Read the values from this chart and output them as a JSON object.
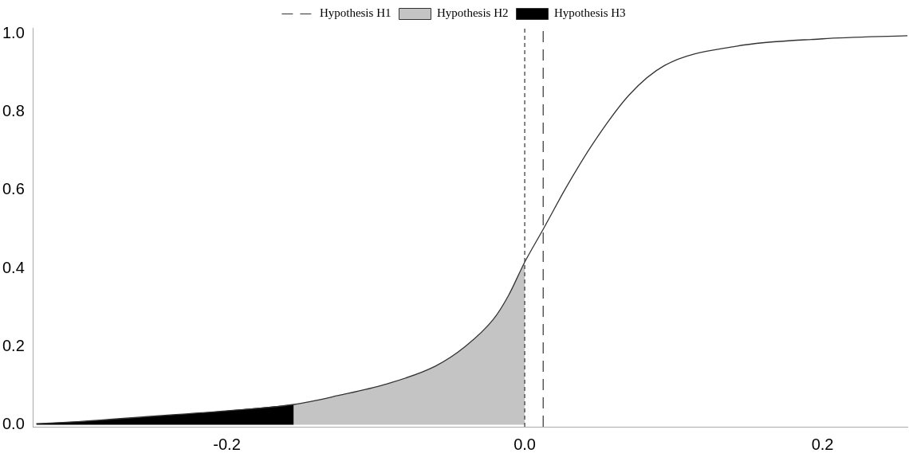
{
  "chart_data": {
    "type": "line",
    "series": [
      {
        "type": "area",
        "name": "Hypothesis H2",
        "color": "#c4c4c4",
        "x": [
          -0.155,
          -0.125,
          -0.094,
          -0.06,
          -0.04,
          -0.021,
          -0.011,
          0
        ],
        "values": [
          0.052,
          0.075,
          0.103,
          0.15,
          0.2,
          0.27,
          0.33,
          0.416
        ]
      },
      {
        "type": "area",
        "name": "Hypothesis H3",
        "color": "#000000",
        "x": [
          -0.328,
          -0.3,
          -0.246,
          -0.203,
          -0.155
        ],
        "values": [
          0.003,
          0.008,
          0.023,
          0.035,
          0.052
        ]
      },
      {
        "color": "#333333",
        "x": [
          -0.328,
          -0.3,
          -0.246,
          -0.203,
          -0.155,
          -0.125,
          -0.094,
          -0.06,
          -0.04,
          -0.021,
          -0.011,
          0,
          0.0124,
          0.028,
          0.046,
          0.07,
          0.094,
          0.142,
          0.2,
          0.257
        ],
        "values": [
          0.003,
          0.008,
          0.023,
          0.035,
          0.052,
          0.075,
          0.103,
          0.15,
          0.2,
          0.27,
          0.33,
          0.416,
          0.5,
          0.608,
          0.72,
          0.843,
          0.919,
          0.968,
          0.987,
          0.995
        ]
      }
    ],
    "ref_lines": [
      {
        "axis": "x",
        "value": 0.0124,
        "label": "Hypothesis H1",
        "color": "#333333",
        "line_style": "dashed"
      },
      {
        "axis": "x",
        "value": 0,
        "color": "#333333",
        "line_style": "dotted"
      }
    ],
    "xlim": [
      -0.33,
      0.257
    ],
    "ylim": [
      -0.005,
      1.015
    ],
    "xticks": [
      {
        "value": -0.2,
        "label": "-0.2"
      },
      {
        "value": 0,
        "label": "0.0"
      },
      {
        "value": 0.2,
        "label": "0.2"
      }
    ],
    "yticks": [
      {
        "value": 0,
        "label": "0.0"
      },
      {
        "value": 0.2,
        "label": "0.2"
      },
      {
        "value": 0.4,
        "label": "0.4"
      },
      {
        "value": 0.6,
        "label": "0.6"
      },
      {
        "value": 0.8,
        "label": "0.8"
      },
      {
        "value": 1,
        "label": "1.0"
      }
    ],
    "grid": false,
    "legend": "top",
    "marker": "none"
  }
}
